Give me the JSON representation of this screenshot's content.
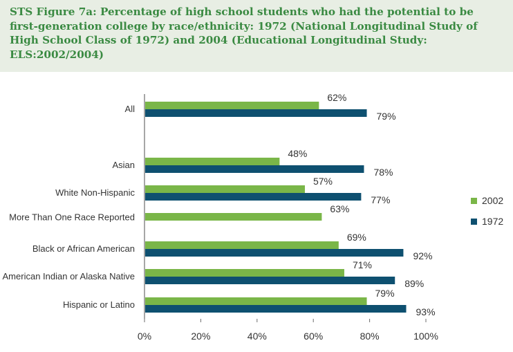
{
  "figure": {
    "title": "STS Figure 7a: Percentage of high school students who had the potential to be first-generation college by race/ethnicity: 1972 (National Longitudinal Study of High School Class of 1972) and 2004 (Educational Longitudinal Study: ELS:2002/2004)"
  },
  "colors": {
    "series_2002": "#7ab648",
    "series_1972": "#0e5070",
    "title_bg": "#e8eee4",
    "title_text": "#3a8a42"
  },
  "chart_data": {
    "type": "bar",
    "orientation": "horizontal",
    "title": "STS Figure 7a: Percentage of high school students who had the potential to be first-generation college by race/ethnicity: 1972 (National Longitudinal Study of High School Class of 1972) and 2004 (Educational Longitudinal Study: ELS:2002/2004)",
    "categories": [
      "All",
      "Asian",
      "White Non-Hispanic",
      "More Than One Race Reported",
      "Black or African American",
      "American Indian or Alaska Native",
      "Hispanic or Latino"
    ],
    "series": [
      {
        "name": "2002",
        "values": [
          62,
          48,
          57,
          63,
          69,
          71,
          79
        ]
      },
      {
        "name": "1972",
        "values": [
          79,
          78,
          77,
          null,
          92,
          89,
          93
        ]
      }
    ],
    "xlim": [
      0,
      100
    ],
    "xticks": [
      "0%",
      "20%",
      "40%",
      "60%",
      "80%",
      "100%"
    ],
    "value_suffix": "%",
    "legend": {
      "position": "right",
      "entries": [
        "2002",
        "1972"
      ]
    },
    "xlabel": "",
    "ylabel": ""
  }
}
